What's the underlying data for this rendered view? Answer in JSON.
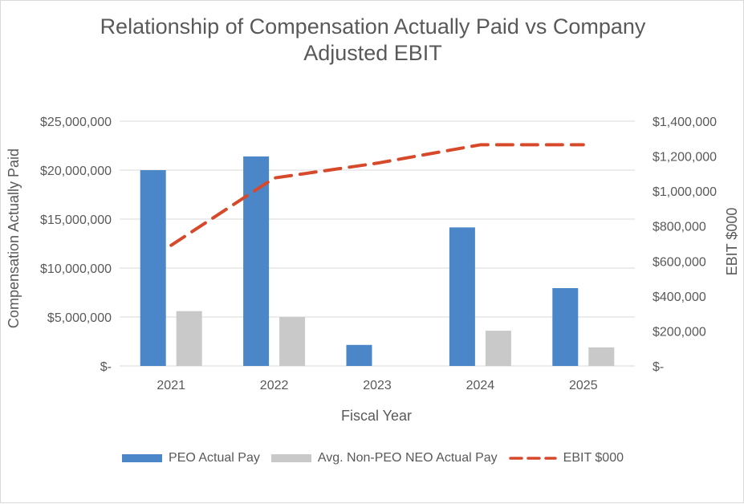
{
  "chart_data": {
    "type": "bar",
    "title_lines": [
      "Relationship of Compensation Actually Paid vs Company",
      "Adjusted EBIT"
    ],
    "categories": [
      "2021",
      "2022",
      "2023",
      "2024",
      "2025"
    ],
    "series": [
      {
        "name": "PEO Actual Pay",
        "type": "bar",
        "axis": "left",
        "color": "#4a86c8",
        "values": [
          20000000,
          21400000,
          2150000,
          14150000,
          7950000
        ]
      },
      {
        "name": "Avg. Non-PEO NEO Actual Pay",
        "type": "bar",
        "axis": "left",
        "color": "#c9c9c9",
        "values": [
          5600000,
          5000000,
          null,
          3600000,
          1900000
        ]
      },
      {
        "name": "EBIT $000",
        "type": "line",
        "style": "dashed",
        "axis": "right",
        "color": "#d6492b",
        "values": [
          690000,
          1075000,
          1160000,
          1265000,
          1265000
        ]
      }
    ],
    "xlabel": "Fiscal Year",
    "ylabel": "Compensation Actually Paid",
    "y2label": "EBIT $000",
    "ylim": [
      0,
      25000000
    ],
    "y2lim": [
      0,
      1400000
    ],
    "yticks": [
      "$-",
      "$5,000,000",
      "$10,000,000",
      "$15,000,000",
      "$20,000,000",
      "$25,000,000"
    ],
    "y2ticks": [
      "$-",
      "$200,000",
      "$400,000",
      "$600,000",
      "$800,000",
      "$1,000,000",
      "$1,200,000",
      "$1,400,000"
    ],
    "grid": true,
    "legend_position": "bottom"
  },
  "legend": {
    "peo": "PEO Actual Pay",
    "neo": "Avg. Non-PEO NEO Actual Pay",
    "ebit": "EBIT $000"
  },
  "colors": {
    "peo": "#4a86c8",
    "neo": "#c9c9c9",
    "ebit": "#d6492b",
    "grid": "#d9d9d9",
    "text": "#595959"
  }
}
